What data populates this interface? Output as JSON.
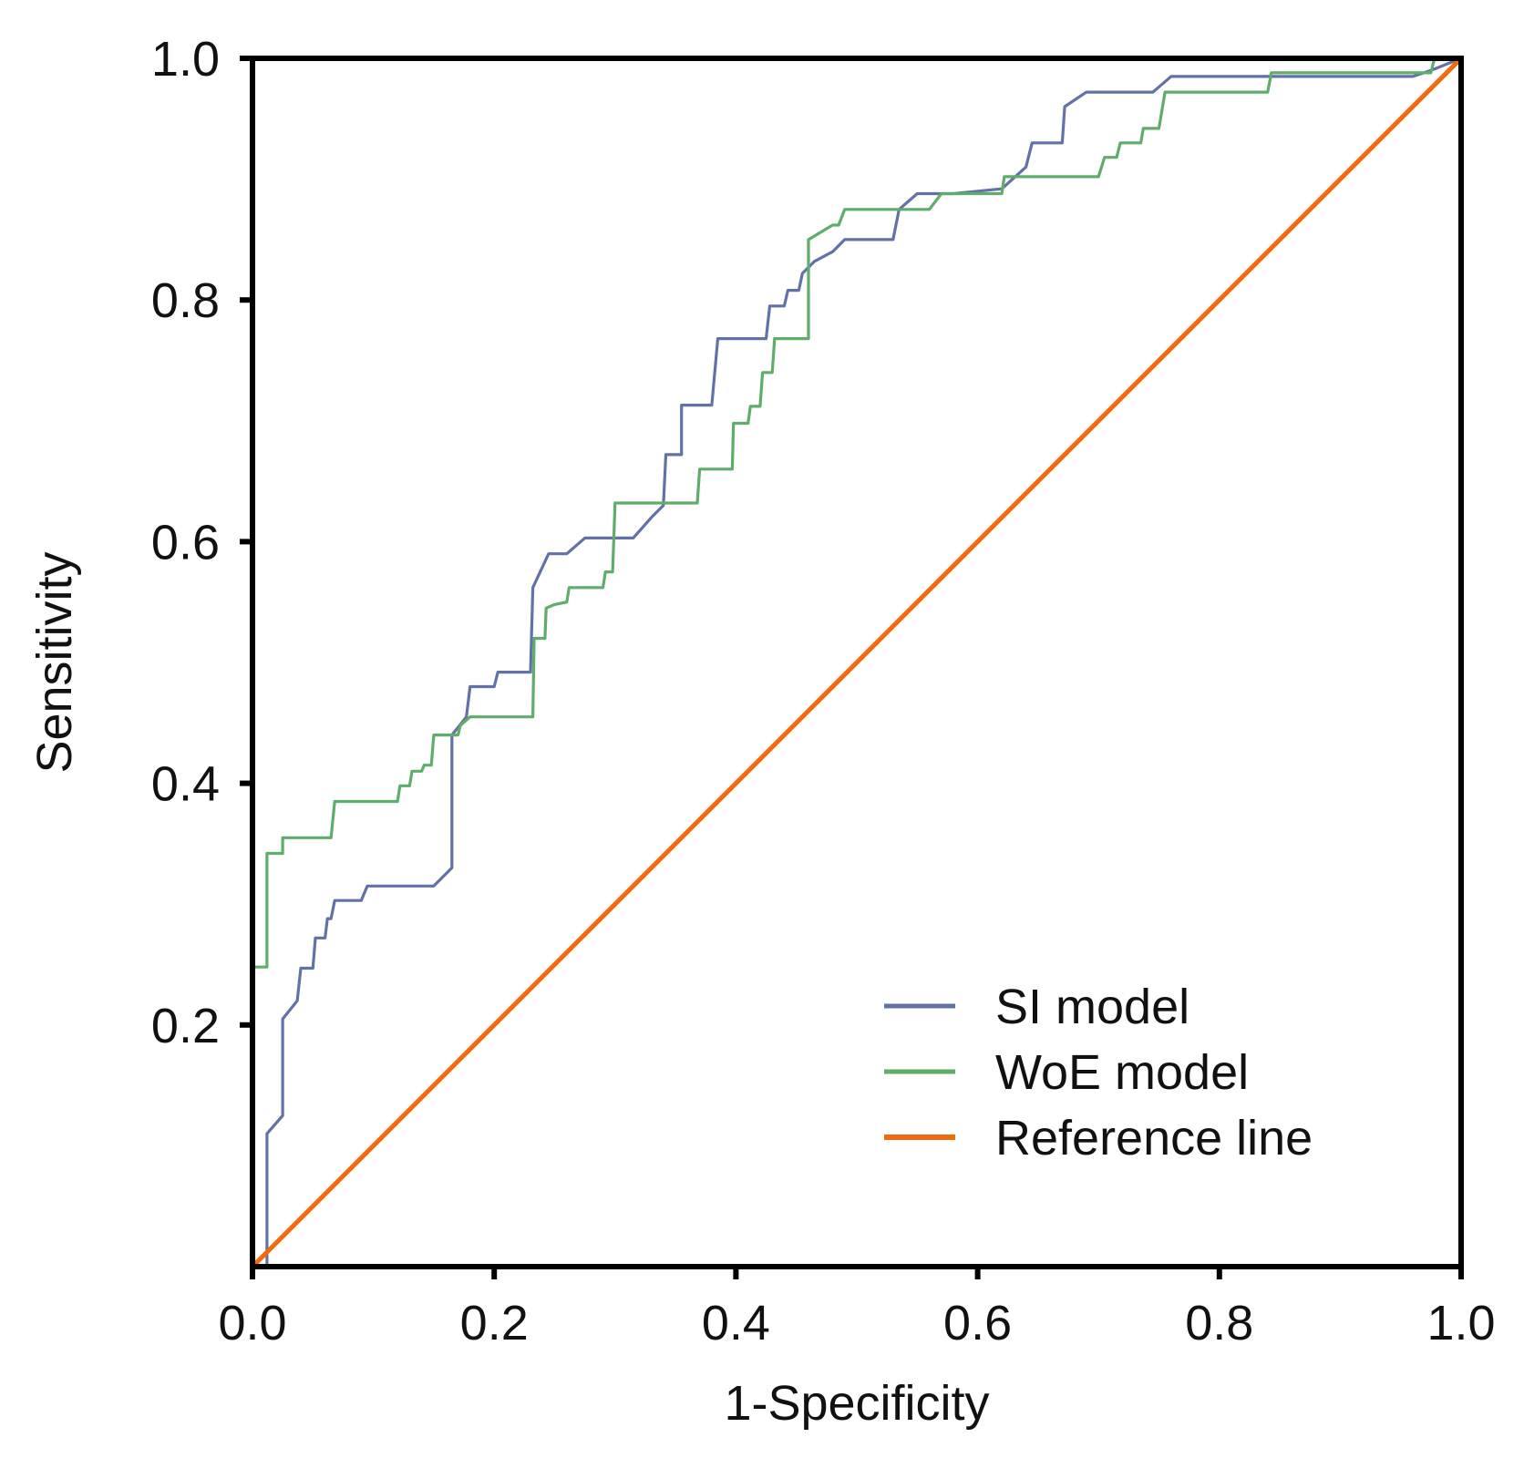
{
  "chart_data": {
    "type": "line",
    "title": "",
    "xlabel": "1-Specificity",
    "ylabel": "Sensitivity",
    "xlim": [
      0,
      1
    ],
    "ylim": [
      0,
      1
    ],
    "grid": false,
    "legend_position": "bottom-right",
    "x_ticks": [
      "0.0",
      "0.2",
      "0.4",
      "0.6",
      "0.8",
      "1.0"
    ],
    "y_ticks": [
      "0.2",
      "0.4",
      "0.6",
      "0.8",
      "1.0"
    ],
    "series": [
      {
        "name": "SI model",
        "color": "#6272a8",
        "points": [
          [
            0,
            0
          ],
          [
            0.012,
            0
          ],
          [
            0.012,
            0.11
          ],
          [
            0.025,
            0.125
          ],
          [
            0.025,
            0.205
          ],
          [
            0.037,
            0.22
          ],
          [
            0.04,
            0.247
          ],
          [
            0.05,
            0.247
          ],
          [
            0.052,
            0.272
          ],
          [
            0.06,
            0.272
          ],
          [
            0.062,
            0.288
          ],
          [
            0.065,
            0.288
          ],
          [
            0.068,
            0.303
          ],
          [
            0.09,
            0.303
          ],
          [
            0.095,
            0.315
          ],
          [
            0.15,
            0.315
          ],
          [
            0.165,
            0.33
          ],
          [
            0.165,
            0.44
          ],
          [
            0.177,
            0.455
          ],
          [
            0.18,
            0.48
          ],
          [
            0.2,
            0.48
          ],
          [
            0.203,
            0.492
          ],
          [
            0.23,
            0.492
          ],
          [
            0.232,
            0.562
          ],
          [
            0.245,
            0.59
          ],
          [
            0.26,
            0.59
          ],
          [
            0.275,
            0.603
          ],
          [
            0.315,
            0.603
          ],
          [
            0.33,
            0.62
          ],
          [
            0.34,
            0.63
          ],
          [
            0.342,
            0.672
          ],
          [
            0.355,
            0.672
          ],
          [
            0.355,
            0.713
          ],
          [
            0.38,
            0.713
          ],
          [
            0.385,
            0.768
          ],
          [
            0.425,
            0.768
          ],
          [
            0.428,
            0.795
          ],
          [
            0.44,
            0.795
          ],
          [
            0.443,
            0.808
          ],
          [
            0.452,
            0.808
          ],
          [
            0.455,
            0.822
          ],
          [
            0.465,
            0.832
          ],
          [
            0.48,
            0.84
          ],
          [
            0.49,
            0.85
          ],
          [
            0.53,
            0.85
          ],
          [
            0.535,
            0.875
          ],
          [
            0.55,
            0.888
          ],
          [
            0.58,
            0.888
          ],
          [
            0.62,
            0.892
          ],
          [
            0.64,
            0.91
          ],
          [
            0.645,
            0.93
          ],
          [
            0.67,
            0.93
          ],
          [
            0.672,
            0.96
          ],
          [
            0.69,
            0.972
          ],
          [
            0.745,
            0.972
          ],
          [
            0.76,
            0.985
          ],
          [
            0.96,
            0.985
          ],
          [
            0.975,
            0.99
          ],
          [
            1,
            1
          ]
        ]
      },
      {
        "name": "WoE model",
        "color": "#5fad6b",
        "points": [
          [
            0,
            0.248
          ],
          [
            0.012,
            0.248
          ],
          [
            0.012,
            0.342
          ],
          [
            0.025,
            0.342
          ],
          [
            0.025,
            0.355
          ],
          [
            0.065,
            0.355
          ],
          [
            0.068,
            0.385
          ],
          [
            0.12,
            0.385
          ],
          [
            0.122,
            0.398
          ],
          [
            0.13,
            0.398
          ],
          [
            0.132,
            0.41
          ],
          [
            0.14,
            0.41
          ],
          [
            0.142,
            0.415
          ],
          [
            0.148,
            0.415
          ],
          [
            0.15,
            0.44
          ],
          [
            0.17,
            0.44
          ],
          [
            0.172,
            0.448
          ],
          [
            0.18,
            0.455
          ],
          [
            0.232,
            0.455
          ],
          [
            0.233,
            0.52
          ],
          [
            0.242,
            0.52
          ],
          [
            0.243,
            0.545
          ],
          [
            0.25,
            0.548
          ],
          [
            0.26,
            0.55
          ],
          [
            0.262,
            0.562
          ],
          [
            0.29,
            0.562
          ],
          [
            0.292,
            0.575
          ],
          [
            0.298,
            0.575
          ],
          [
            0.3,
            0.632
          ],
          [
            0.345,
            0.632
          ],
          [
            0.355,
            0.632
          ],
          [
            0.368,
            0.632
          ],
          [
            0.37,
            0.66
          ],
          [
            0.397,
            0.66
          ],
          [
            0.398,
            0.698
          ],
          [
            0.41,
            0.698
          ],
          [
            0.412,
            0.712
          ],
          [
            0.42,
            0.712
          ],
          [
            0.422,
            0.74
          ],
          [
            0.43,
            0.74
          ],
          [
            0.432,
            0.768
          ],
          [
            0.46,
            0.768
          ],
          [
            0.46,
            0.85
          ],
          [
            0.48,
            0.862
          ],
          [
            0.485,
            0.862
          ],
          [
            0.49,
            0.875
          ],
          [
            0.56,
            0.875
          ],
          [
            0.57,
            0.888
          ],
          [
            0.62,
            0.888
          ],
          [
            0.622,
            0.902
          ],
          [
            0.7,
            0.902
          ],
          [
            0.705,
            0.918
          ],
          [
            0.715,
            0.918
          ],
          [
            0.718,
            0.93
          ],
          [
            0.735,
            0.93
          ],
          [
            0.737,
            0.942
          ],
          [
            0.75,
            0.942
          ],
          [
            0.755,
            0.972
          ],
          [
            0.84,
            0.972
          ],
          [
            0.843,
            0.988
          ],
          [
            0.975,
            0.988
          ],
          [
            0.978,
            1.0
          ],
          [
            1,
            1
          ]
        ]
      },
      {
        "name": "Reference line",
        "color": "#f26a10",
        "points": [
          [
            0,
            0
          ],
          [
            1,
            1
          ]
        ]
      }
    ]
  }
}
